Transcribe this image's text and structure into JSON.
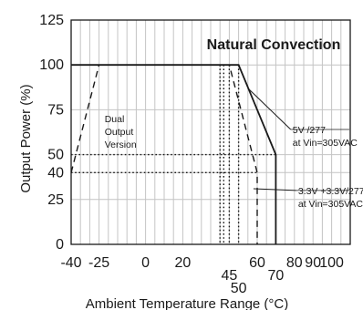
{
  "chart_data": {
    "type": "line",
    "xlabel": "Ambient Temperature Range (°C)",
    "ylabel": "Output Power (%)",
    "xlim": [
      -40,
      110
    ],
    "ylim": [
      0,
      125
    ],
    "x_ticks": [
      {
        "value": -40,
        "label": "-40"
      },
      {
        "value": -25,
        "label": "-25"
      },
      {
        "value": 0,
        "label": "0"
      },
      {
        "value": 20,
        "label": "20"
      },
      {
        "value": 45,
        "label": "45",
        "offset": 1
      },
      {
        "value": 50,
        "label": "50",
        "offset": 2
      },
      {
        "value": 60,
        "label": "60"
      },
      {
        "value": 70,
        "label": "70",
        "offset": 1
      },
      {
        "value": 80,
        "label": "80"
      },
      {
        "value": 90,
        "label": "90"
      },
      {
        "value": 100,
        "label": "100"
      }
    ],
    "y_ticks": [
      {
        "value": 0,
        "label": "0"
      },
      {
        "value": 25,
        "label": "25"
      },
      {
        "value": 40,
        "label": "40"
      },
      {
        "value": 50,
        "label": "50"
      },
      {
        "value": 75,
        "label": "75"
      },
      {
        "value": 100,
        "label": "100"
      },
      {
        "value": 125,
        "label": "125"
      }
    ],
    "grid": true,
    "legend_box": "Natural Convection",
    "series": [
      {
        "style": "solid",
        "color": "#1a1a1a",
        "points": [
          [
            -40,
            100
          ],
          [
            50,
            100
          ],
          [
            70,
            50
          ],
          [
            70,
            0
          ]
        ]
      },
      {
        "style": "dashed",
        "color": "#1a1a1a",
        "points": [
          [
            -40,
            100
          ],
          [
            45,
            100
          ],
          [
            60,
            40
          ],
          [
            60,
            0
          ]
        ]
      },
      {
        "style": "dashed",
        "color": "#1a1a1a",
        "points": [
          [
            -40,
            40
          ],
          [
            -25,
            100
          ]
        ]
      },
      {
        "style": "dotted",
        "color": "#1a1a1a",
        "points": [
          [
            -40,
            50
          ],
          [
            70,
            50
          ]
        ]
      },
      {
        "style": "dotted",
        "color": "#1a1a1a",
        "points": [
          [
            -40,
            40
          ],
          [
            60,
            40
          ]
        ]
      },
      {
        "style": "dotted",
        "color": "#1a1a1a",
        "points": [
          [
            40,
            100
          ],
          [
            40,
            0
          ]
        ]
      },
      {
        "style": "dotted",
        "color": "#1a1a1a",
        "points": [
          [
            42,
            100
          ],
          [
            42,
            0
          ]
        ]
      },
      {
        "style": "dotted",
        "color": "#1a1a1a",
        "points": [
          [
            45,
            100
          ],
          [
            45,
            0
          ]
        ]
      },
      {
        "style": "dotted",
        "color": "#1a1a1a",
        "points": [
          [
            50,
            100
          ],
          [
            50,
            0
          ]
        ]
      }
    ],
    "annotations": [
      {
        "lines": [
          "Dual",
          "Output",
          "Version"
        ],
        "x": -22,
        "y": 68
      },
      {
        "lines": [
          "5V /277",
          "at Vin=305VAC"
        ],
        "x": 79,
        "y": 62,
        "arrow_to": [
          55,
          87
        ]
      },
      {
        "lines": [
          "3.3V +3.3V/277",
          "at Vin=305VAC"
        ],
        "x": 82,
        "y": 28,
        "arrow_to": [
          58,
          31
        ]
      }
    ]
  }
}
